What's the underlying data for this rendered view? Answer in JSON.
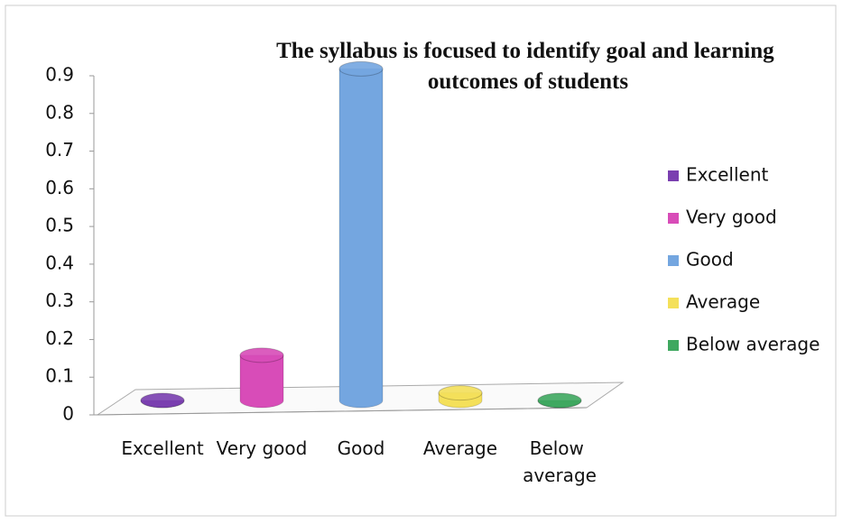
{
  "chart_data": {
    "type": "bar",
    "title": "The syllabus is focused to identify goal and learning outcomes of students",
    "categories": [
      "Excellent",
      "Very good",
      "Good",
      "Average",
      "Below average"
    ],
    "values": [
      0,
      0.12,
      0.88,
      0.02,
      0
    ],
    "colors": [
      "#7a3fb0",
      "#d84cb8",
      "#74a6e0",
      "#f4e05a",
      "#3fa860"
    ],
    "ylim": [
      0,
      0.9
    ],
    "yticks": [
      0,
      0.1,
      0.2,
      0.3,
      0.4,
      0.5,
      0.6,
      0.7,
      0.8,
      0.9
    ],
    "legend": "right"
  }
}
